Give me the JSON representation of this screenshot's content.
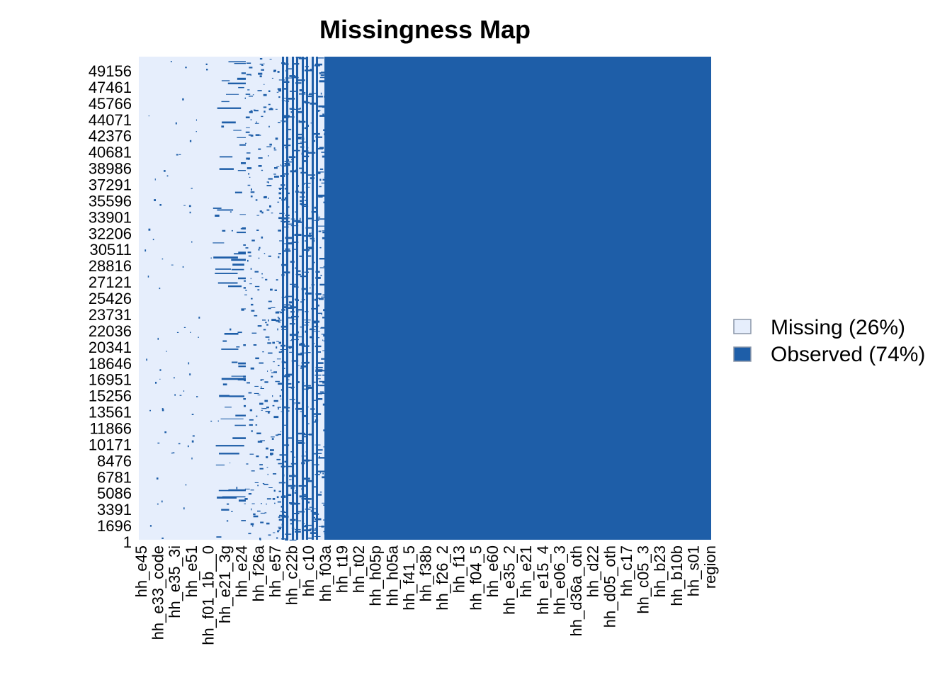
{
  "colors": {
    "missing": "#e6eefc",
    "observed": "#1e5ea8"
  },
  "chart_data": {
    "type": "heatmap",
    "title": "Missingness Map",
    "xlabel": "",
    "ylabel": "",
    "y_tick_labels": [
      "49156",
      "47461",
      "45766",
      "44071",
      "42376",
      "40681",
      "38986",
      "37291",
      "35596",
      "33901",
      "32206",
      "30511",
      "28816",
      "27121",
      "25426",
      "23731",
      "22036",
      "20341",
      "18646",
      "16951",
      "15256",
      "13561",
      "11866",
      "10171",
      "8476",
      "6781",
      "5086",
      "3391",
      "1696",
      "1"
    ],
    "x_tick_labels": [
      "hh_e45",
      "hh_e33_code",
      "hh_e35_3i",
      "hh_e51",
      "hh_f01_1b__0",
      "hh_e21_3g",
      "hh_e24",
      "hh_f26a",
      "hh_e57",
      "hh_c22b",
      "hh_c10",
      "hh_f03a",
      "hh_t19",
      "hh_t02",
      "hh_h05p",
      "hh_h05a",
      "hh_f41_5",
      "hh_f38b",
      "hh_f26_2",
      "hh_f13",
      "hh_f04_5",
      "hh_e60",
      "hh_e35_2",
      "hh_e21",
      "hh_e15_4",
      "hh_e06_3",
      "hh_d36a_oth",
      "hh_d22",
      "hh_d05_oth",
      "hh_c17",
      "hh_c05_3",
      "hh_b23",
      "hh_b10b",
      "hh_s01",
      "region"
    ],
    "legend": [
      {
        "label": "Missing (26%)",
        "category": "missing",
        "percent": 26
      },
      {
        "label": "Observed (74%)",
        "category": "observed",
        "percent": 74
      }
    ],
    "legend_placement": "right",
    "grid": false
  }
}
